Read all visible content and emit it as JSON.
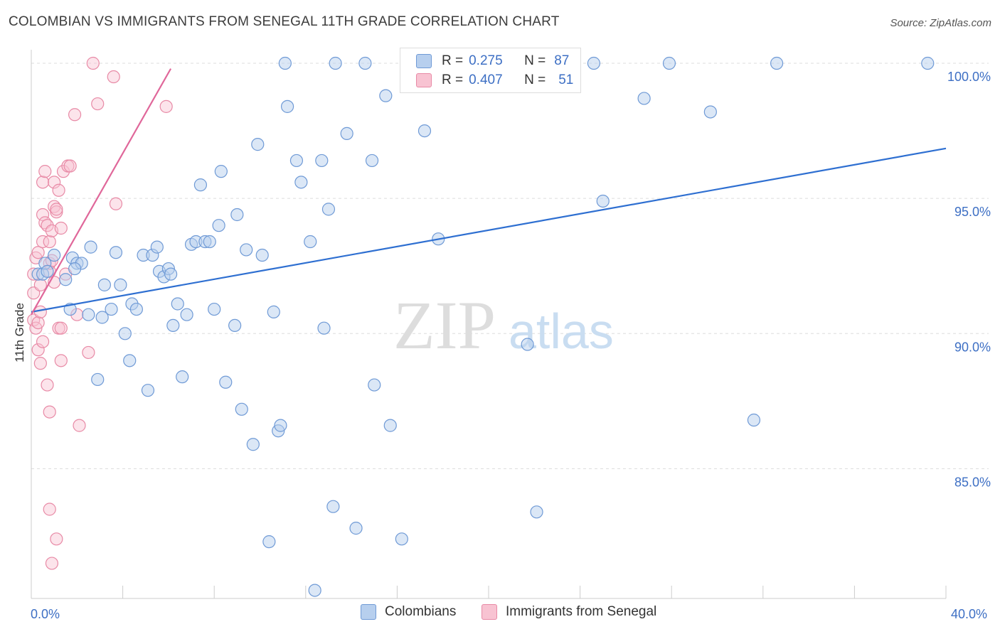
{
  "title": "COLOMBIAN VS IMMIGRANTS FROM SENEGAL 11TH GRADE CORRELATION CHART",
  "source": "Source: ZipAtlas.com",
  "watermark": {
    "zip": "ZIP",
    "atlas": "atlas"
  },
  "colors": {
    "blue_fill": "#b7cfee",
    "blue_stroke": "#6f9ad6",
    "blue_line": "#2e6fd1",
    "pink_fill": "#f8c3d2",
    "pink_stroke": "#e88aa6",
    "pink_line": "#e0679a",
    "grid": "#dddddd",
    "tick_text": "#3d6fc4"
  },
  "legend": {
    "rows": [
      {
        "r_label": "R =",
        "r_value": "0.275",
        "n_label": "N =",
        "n_value": "87",
        "color": "#b7cfee"
      },
      {
        "r_label": "R =",
        "r_value": "0.407",
        "n_label": "N =",
        "n_value": "51",
        "color": "#f8c3d2"
      }
    ]
  },
  "bottom_legend": [
    {
      "label": "Colombians",
      "color": "#b7cfee"
    },
    {
      "label": "Immigrants from Senegal",
      "color": "#f8c3d2"
    }
  ],
  "chart_data": {
    "type": "scatter",
    "title": "COLOMBIAN VS IMMIGRANTS FROM SENEGAL 11TH GRADE CORRELATION CHART",
    "xlabel": "",
    "ylabel": "11th Grade",
    "xlim": [
      0,
      40
    ],
    "ylim": [
      80.2,
      100.5
    ],
    "x_tick_labels": [
      "0.0%",
      "40.0%"
    ],
    "y_ticks": [
      85,
      90,
      95,
      100
    ],
    "y_tick_labels": [
      "85.0%",
      "90.0%",
      "95.0%",
      "100.0%"
    ],
    "grid": true,
    "legend_position": "top-center",
    "series": [
      {
        "name": "Colombians",
        "r": 0.275,
        "n": 87,
        "trend": {
          "x": [
            0,
            40
          ],
          "y": [
            90.8,
            96.85
          ]
        },
        "points": [
          [
            0.3,
            92.2
          ],
          [
            0.5,
            92.2
          ],
          [
            0.6,
            92.6
          ],
          [
            0.7,
            92.3
          ],
          [
            1.0,
            92.9
          ],
          [
            1.5,
            92.0
          ],
          [
            1.7,
            90.9
          ],
          [
            1.8,
            92.8
          ],
          [
            2.0,
            92.6
          ],
          [
            2.2,
            92.6
          ],
          [
            2.5,
            90.7
          ],
          [
            2.6,
            93.2
          ],
          [
            2.9,
            88.3
          ],
          [
            3.1,
            90.6
          ],
          [
            3.2,
            91.8
          ],
          [
            3.5,
            90.9
          ],
          [
            3.7,
            93.0
          ],
          [
            3.9,
            91.8
          ],
          [
            4.1,
            90.0
          ],
          [
            4.3,
            89.0
          ],
          [
            4.4,
            91.1
          ],
          [
            4.6,
            90.9
          ],
          [
            4.9,
            92.9
          ],
          [
            5.1,
            87.9
          ],
          [
            5.3,
            92.9
          ],
          [
            5.5,
            93.2
          ],
          [
            5.6,
            92.3
          ],
          [
            5.8,
            92.1
          ],
          [
            6.0,
            92.4
          ],
          [
            6.2,
            90.3
          ],
          [
            6.4,
            91.1
          ],
          [
            6.6,
            88.4
          ],
          [
            6.8,
            90.7
          ],
          [
            7.0,
            93.3
          ],
          [
            7.2,
            93.4
          ],
          [
            7.4,
            95.5
          ],
          [
            7.6,
            93.4
          ],
          [
            7.8,
            93.4
          ],
          [
            8.0,
            90.9
          ],
          [
            8.2,
            94.0
          ],
          [
            8.3,
            96.0
          ],
          [
            8.5,
            88.2
          ],
          [
            8.9,
            90.3
          ],
          [
            9.0,
            94.4
          ],
          [
            9.2,
            87.2
          ],
          [
            9.4,
            93.1
          ],
          [
            9.7,
            85.9
          ],
          [
            9.9,
            97.0
          ],
          [
            10.1,
            92.9
          ],
          [
            10.4,
            82.3
          ],
          [
            10.6,
            90.8
          ],
          [
            10.8,
            86.4
          ],
          [
            10.9,
            86.6
          ],
          [
            11.1,
            100.0
          ],
          [
            11.2,
            98.4
          ],
          [
            11.6,
            96.4
          ],
          [
            11.8,
            95.6
          ],
          [
            12.2,
            93.4
          ],
          [
            12.4,
            80.5
          ],
          [
            12.7,
            96.4
          ],
          [
            12.8,
            90.2
          ],
          [
            13.0,
            94.6
          ],
          [
            13.2,
            83.6
          ],
          [
            13.3,
            100.0
          ],
          [
            13.8,
            97.4
          ],
          [
            14.2,
            82.8
          ],
          [
            14.6,
            100.0
          ],
          [
            14.9,
            96.4
          ],
          [
            15.0,
            88.1
          ],
          [
            15.5,
            98.8
          ],
          [
            15.7,
            86.6
          ],
          [
            16.2,
            82.4
          ],
          [
            17.2,
            97.5
          ],
          [
            17.8,
            93.5
          ],
          [
            19.4,
            100.0
          ],
          [
            21.7,
            89.6
          ],
          [
            22.1,
            83.4
          ],
          [
            24.6,
            100.0
          ],
          [
            25.0,
            94.9
          ],
          [
            26.8,
            98.7
          ],
          [
            27.9,
            100.0
          ],
          [
            29.7,
            98.2
          ],
          [
            31.6,
            86.8
          ],
          [
            32.6,
            100.0
          ],
          [
            39.2,
            100.0
          ],
          [
            1.9,
            92.4
          ],
          [
            6.1,
            92.2
          ]
        ]
      },
      {
        "name": "Immigrants from Senegal",
        "r": 0.407,
        "n": 51,
        "trend": {
          "x": [
            0,
            6.1
          ],
          "y": [
            90.7,
            99.8
          ]
        },
        "points": [
          [
            0.1,
            91.5
          ],
          [
            0.1,
            92.2
          ],
          [
            0.1,
            90.5
          ],
          [
            0.2,
            90.2
          ],
          [
            0.2,
            92.8
          ],
          [
            0.3,
            93.0
          ],
          [
            0.3,
            90.4
          ],
          [
            0.3,
            89.4
          ],
          [
            0.4,
            88.9
          ],
          [
            0.4,
            90.8
          ],
          [
            0.4,
            91.8
          ],
          [
            0.5,
            93.4
          ],
          [
            0.5,
            95.6
          ],
          [
            0.5,
            94.4
          ],
          [
            0.5,
            89.7
          ],
          [
            0.6,
            96.0
          ],
          [
            0.6,
            94.1
          ],
          [
            0.7,
            94.0
          ],
          [
            0.7,
            88.1
          ],
          [
            0.8,
            92.3
          ],
          [
            0.8,
            93.4
          ],
          [
            0.8,
            92.6
          ],
          [
            0.8,
            83.5
          ],
          [
            0.8,
            87.1
          ],
          [
            0.9,
            93.8
          ],
          [
            0.9,
            92.7
          ],
          [
            0.9,
            81.5
          ],
          [
            1.0,
            95.6
          ],
          [
            1.0,
            91.9
          ],
          [
            1.0,
            94.7
          ],
          [
            1.1,
            94.5
          ],
          [
            1.1,
            82.4
          ],
          [
            1.2,
            95.3
          ],
          [
            1.1,
            94.6
          ],
          [
            1.2,
            90.2
          ],
          [
            1.3,
            93.9
          ],
          [
            1.3,
            90.2
          ],
          [
            1.3,
            89.0
          ],
          [
            1.4,
            96.0
          ],
          [
            1.5,
            92.2
          ],
          [
            1.6,
            96.2
          ],
          [
            1.7,
            96.2
          ],
          [
            1.9,
            98.1
          ],
          [
            2.0,
            90.7
          ],
          [
            2.1,
            86.6
          ],
          [
            2.5,
            89.3
          ],
          [
            2.7,
            100.0
          ],
          [
            2.9,
            98.5
          ],
          [
            3.6,
            99.5
          ],
          [
            3.7,
            94.8
          ],
          [
            5.9,
            98.4
          ]
        ]
      }
    ]
  }
}
